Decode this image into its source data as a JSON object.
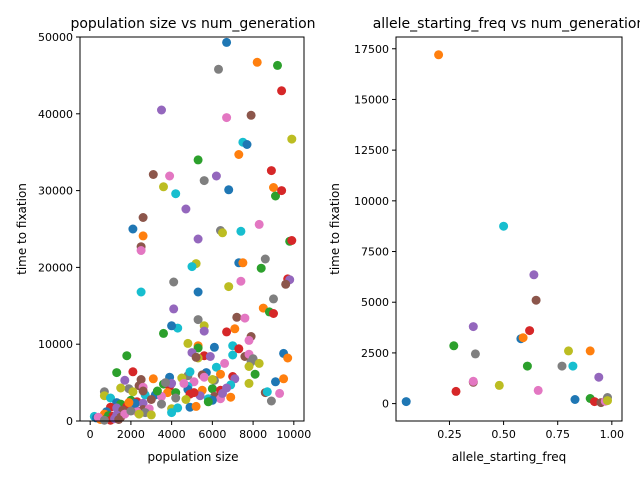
{
  "palette": [
    "#1f77b4",
    "#ff7f0e",
    "#2ca02c",
    "#d62728",
    "#9467bd",
    "#8c564b",
    "#e377c2",
    "#7f7f7f",
    "#bcbd22",
    "#17becf"
  ],
  "chart_data": [
    {
      "type": "scatter",
      "title": "population size vs num_generation",
      "xlabel": "population size",
      "ylabel": "time to fixation",
      "xlim": [
        -500,
        10500
      ],
      "ylim": [
        0,
        50000
      ],
      "xticks": [
        0,
        2000,
        4000,
        6000,
        8000,
        10000
      ],
      "yticks": [
        0,
        10000,
        20000,
        30000,
        40000,
        50000
      ],
      "grid": false,
      "points": [
        [
          6700,
          49300
        ],
        [
          8200,
          46700
        ],
        [
          9200,
          46300
        ],
        [
          9400,
          43000
        ],
        [
          3500,
          40500
        ],
        [
          7900,
          39800
        ],
        [
          6700,
          39500
        ],
        [
          6300,
          45800
        ],
        [
          9900,
          36700
        ],
        [
          7500,
          36300
        ],
        [
          7700,
          36000
        ],
        [
          7300,
          34700
        ],
        [
          5300,
          34000
        ],
        [
          8900,
          32600
        ],
        [
          6200,
          31900
        ],
        [
          3100,
          32100
        ],
        [
          3900,
          31900
        ],
        [
          5600,
          31300
        ],
        [
          3600,
          30500
        ],
        [
          4200,
          29600
        ],
        [
          6800,
          30100
        ],
        [
          9000,
          30400
        ],
        [
          9100,
          29300
        ],
        [
          9400,
          30000
        ],
        [
          4700,
          27600
        ],
        [
          2600,
          26500
        ],
        [
          8300,
          25600
        ],
        [
          6400,
          24800
        ],
        [
          6500,
          24500
        ],
        [
          7400,
          24700
        ],
        [
          2100,
          25000
        ],
        [
          2600,
          24100
        ],
        [
          9800,
          23400
        ],
        [
          9900,
          23500
        ],
        [
          5300,
          23700
        ],
        [
          2500,
          22700
        ],
        [
          2500,
          22200
        ],
        [
          8600,
          21100
        ],
        [
          5200,
          20500
        ],
        [
          5000,
          20100
        ],
        [
          7300,
          20600
        ],
        [
          7500,
          20600
        ],
        [
          8400,
          19900
        ],
        [
          9700,
          18500
        ],
        [
          9800,
          18400
        ],
        [
          9600,
          17800
        ],
        [
          7400,
          18200
        ],
        [
          4100,
          18100
        ],
        [
          6800,
          17500
        ],
        [
          2500,
          16800
        ],
        [
          5300,
          16800
        ],
        [
          8500,
          14700
        ],
        [
          8800,
          14200
        ],
        [
          9000,
          14000
        ],
        [
          4100,
          14600
        ],
        [
          7200,
          13500
        ],
        [
          7600,
          13400
        ],
        [
          5300,
          13200
        ],
        [
          5600,
          12400
        ],
        [
          4300,
          12100
        ],
        [
          4000,
          12400
        ],
        [
          7100,
          12000
        ],
        [
          3600,
          11400
        ],
        [
          6700,
          11600
        ],
        [
          5600,
          11700
        ],
        [
          7900,
          11000
        ],
        [
          7800,
          10500
        ],
        [
          9000,
          15900
        ],
        [
          4800,
          10100
        ],
        [
          7000,
          9800
        ],
        [
          6100,
          9600
        ],
        [
          5300,
          9800
        ],
        [
          5300,
          9500
        ],
        [
          5600,
          8500
        ],
        [
          5900,
          8400
        ],
        [
          7600,
          8400
        ],
        [
          7800,
          8700
        ],
        [
          8000,
          8100
        ],
        [
          5300,
          8200
        ],
        [
          7000,
          8600
        ],
        [
          9500,
          8800
        ],
        [
          9700,
          8200
        ],
        [
          1800,
          8500
        ],
        [
          7300,
          9400
        ],
        [
          5000,
          8900
        ],
        [
          5200,
          8300
        ],
        [
          6600,
          7500
        ],
        [
          7900,
          7700
        ],
        [
          7800,
          7100
        ],
        [
          6200,
          7000
        ],
        [
          5700,
          6300
        ],
        [
          6400,
          6100
        ],
        [
          8100,
          6100
        ],
        [
          7000,
          5800
        ],
        [
          7100,
          5500
        ],
        [
          5500,
          6000
        ],
        [
          5600,
          5700
        ],
        [
          4800,
          5900
        ],
        [
          4500,
          5600
        ],
        [
          4900,
          6400
        ],
        [
          3900,
          5700
        ],
        [
          3100,
          5500
        ],
        [
          1300,
          6300
        ],
        [
          2100,
          6400
        ],
        [
          1700,
          5300
        ],
        [
          2500,
          5400
        ],
        [
          5100,
          5100
        ],
        [
          6100,
          5300
        ],
        [
          7800,
          4900
        ],
        [
          6900,
          4700
        ],
        [
          9100,
          5100
        ],
        [
          9500,
          5500
        ],
        [
          3600,
          4800
        ],
        [
          3900,
          4500
        ],
        [
          4000,
          4900
        ],
        [
          2400,
          4600
        ],
        [
          2600,
          4400
        ],
        [
          1900,
          4200
        ],
        [
          1500,
          4300
        ],
        [
          4800,
          4500
        ],
        [
          4800,
          4100
        ],
        [
          5500,
          4000
        ],
        [
          6000,
          4200
        ],
        [
          6400,
          4000
        ],
        [
          6700,
          4300
        ],
        [
          8600,
          3700
        ],
        [
          9300,
          3600
        ],
        [
          700,
          3800
        ],
        [
          2100,
          3800
        ],
        [
          2700,
          3400
        ],
        [
          3200,
          3400
        ],
        [
          3800,
          3700
        ],
        [
          4200,
          3700
        ],
        [
          4900,
          3500
        ],
        [
          5400,
          3300
        ],
        [
          6100,
          3200
        ],
        [
          6400,
          2900
        ],
        [
          8900,
          2600
        ],
        [
          700,
          3300
        ],
        [
          1000,
          3000
        ],
        [
          1300,
          2400
        ],
        [
          1700,
          1900
        ],
        [
          2000,
          2700
        ],
        [
          2300,
          2500
        ],
        [
          2600,
          2300
        ],
        [
          3000,
          2800
        ],
        [
          3500,
          3200
        ],
        [
          4200,
          3000
        ],
        [
          4700,
          2800
        ],
        [
          5800,
          2900
        ],
        [
          6000,
          2700
        ],
        [
          6900,
          3100
        ],
        [
          1500,
          2200
        ],
        [
          1800,
          1900
        ],
        [
          2200,
          1600
        ],
        [
          2600,
          1500
        ],
        [
          2900,
          1600
        ],
        [
          3500,
          2200
        ],
        [
          4000,
          1600
        ],
        [
          4300,
          1700
        ],
        [
          4900,
          1800
        ],
        [
          5200,
          1900
        ],
        [
          5800,
          2500
        ],
        [
          1000,
          1800
        ],
        [
          1300,
          1700
        ],
        [
          1600,
          1400
        ],
        [
          2300,
          1200
        ],
        [
          2700,
          1100
        ],
        [
          3000,
          800
        ],
        [
          4000,
          1100
        ],
        [
          800,
          1200
        ],
        [
          700,
          900
        ],
        [
          900,
          700
        ],
        [
          1100,
          600
        ],
        [
          1300,
          800
        ],
        [
          1500,
          500
        ],
        [
          1700,
          900
        ],
        [
          2000,
          1300
        ],
        [
          2400,
          900
        ],
        [
          200,
          600
        ],
        [
          300,
          400
        ],
        [
          500,
          200
        ],
        [
          800,
          300
        ],
        [
          1000,
          100
        ],
        [
          1200,
          300
        ],
        [
          1400,
          200
        ],
        [
          400,
          500
        ],
        [
          700,
          100
        ],
        [
          6000,
          5400
        ],
        [
          8700,
          3800
        ],
        [
          2200,
          2300
        ],
        [
          1900,
          2400
        ],
        [
          3300,
          3900
        ],
        [
          5100,
          3700
        ],
        [
          6500,
          3600
        ],
        [
          2600,
          3900
        ],
        [
          4600,
          4900
        ],
        [
          3700,
          5000
        ],
        [
          8300,
          7500
        ]
      ]
    },
    {
      "type": "scatter",
      "title": "allele_starting_freq vs num_generation",
      "xlabel": "allele_starting_freq",
      "ylabel": "time to fixation",
      "xlim": [
        0.003,
        1.047
      ],
      "ylim": [
        -858,
        18080
      ],
      "xticks": [
        0.25,
        0.5,
        0.75,
        1.0
      ],
      "xticklabels": [
        "0.25",
        "0.50",
        "0.75",
        "1.00"
      ],
      "yticks": [
        0,
        2500,
        5000,
        7500,
        10000,
        12500,
        15000,
        17500
      ],
      "grid": false,
      "points": [
        [
          0.05,
          100
        ],
        [
          0.2,
          17200
        ],
        [
          0.27,
          2850
        ],
        [
          0.28,
          600
        ],
        [
          0.36,
          3800
        ],
        [
          0.36,
          1050
        ],
        [
          0.36,
          1100
        ],
        [
          0.37,
          2450
        ],
        [
          0.48,
          900
        ],
        [
          0.5,
          8750
        ],
        [
          0.58,
          3200
        ],
        [
          0.59,
          3250
        ],
        [
          0.61,
          1850
        ],
        [
          0.62,
          3600
        ],
        [
          0.64,
          6350
        ],
        [
          0.65,
          5100
        ],
        [
          0.66,
          650
        ],
        [
          0.77,
          1850
        ],
        [
          0.8,
          2600
        ],
        [
          0.82,
          1850
        ],
        [
          0.83,
          200
        ],
        [
          0.9,
          2600
        ],
        [
          0.9,
          250
        ],
        [
          0.92,
          100
        ],
        [
          0.94,
          1300
        ],
        [
          0.95,
          50
        ],
        [
          0.97,
          120
        ],
        [
          0.98,
          300
        ],
        [
          0.98,
          150
        ]
      ]
    }
  ]
}
